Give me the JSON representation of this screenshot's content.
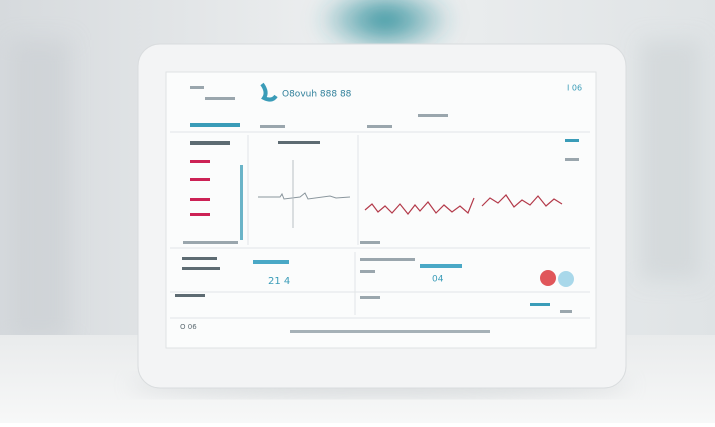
{
  "header": {
    "title": "O8ovuh 888 88",
    "corner": "I 06"
  },
  "panels": {
    "left_value": "21 4",
    "right_value": "04",
    "footer": "O 06"
  }
}
